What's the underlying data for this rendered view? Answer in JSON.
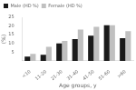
{
  "chart_data": {
    "type": "bar",
    "categories": [
      "<10",
      "11-20",
      "21-30",
      "31-40",
      "41-50",
      "51-60",
      ">60"
    ],
    "series": [
      {
        "name": "Male (HD %)",
        "color": "#1a1a1a",
        "values": [
          2.5,
          3.5,
          10.0,
          12.5,
          14.5,
          20.5,
          13.0
        ]
      },
      {
        "name": "Female (HD %)",
        "color": "#c0c0c0",
        "values": [
          4.0,
          8.0,
          11.5,
          18.0,
          19.5,
          20.5,
          17.0
        ]
      }
    ],
    "xlabel": "Age groups, y",
    "ylabel": "(%)",
    "ylim": [
      0,
      25
    ],
    "yticks": [
      5,
      10,
      15,
      20,
      25
    ],
    "grid": false,
    "legend": "upper left"
  }
}
